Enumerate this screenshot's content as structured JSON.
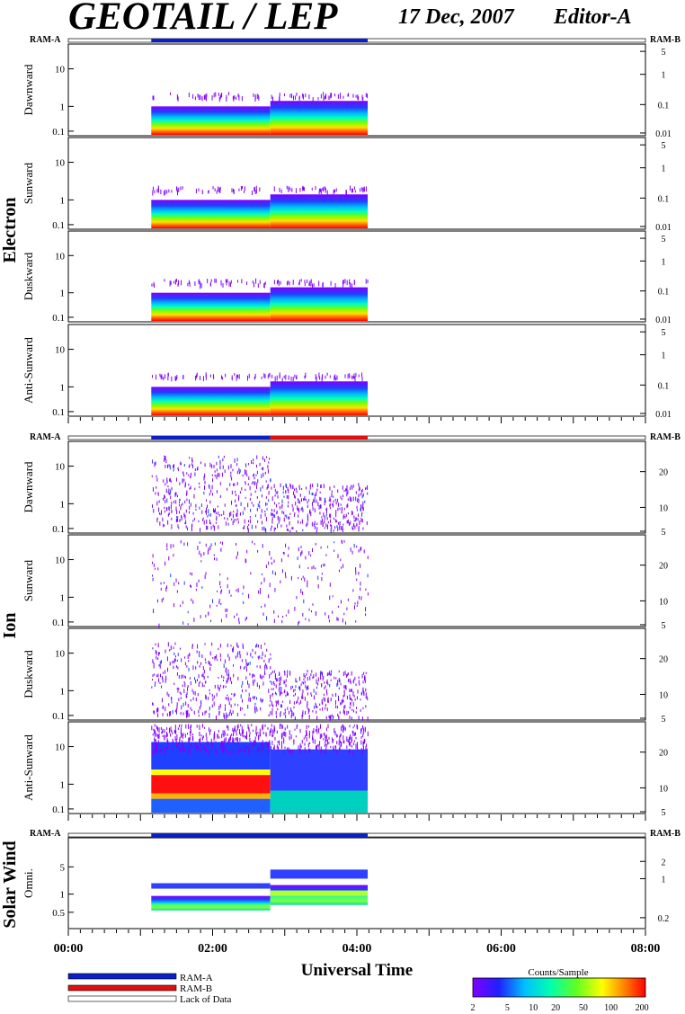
{
  "header": {
    "title": "GEOTAIL / LEP",
    "date": "17 Dec, 2007",
    "editor": "Editor-A"
  },
  "groups": [
    {
      "label": "Electron",
      "ram_left": "RAM-A",
      "ram_right": "RAM-B"
    },
    {
      "label": "Ion",
      "ram_left": "RAM-A",
      "ram_right": "RAM-B"
    },
    {
      "label": "Solar Wind",
      "ram_left": "RAM-A",
      "ram_right": "RAM-B"
    }
  ],
  "chart_data": {
    "type": "heatmap",
    "xlabel": "Universal Time",
    "x_range_hours": [
      0,
      8
    ],
    "x_tick_labels": [
      "00:00",
      "02:00",
      "04:00",
      "06:00",
      "08:00"
    ],
    "data_coverage_hours": [
      1.15,
      4.15
    ],
    "panels": [
      {
        "group": "Electron",
        "label": "Dawnward",
        "left_ticks": [
          "10",
          "1",
          "0.1"
        ],
        "right_ticks": [
          "5",
          "1",
          "0.1",
          "0.01"
        ],
        "ram_bar": [
          {
            "from": 1.15,
            "to": 4.15,
            "mode": "RAM-A"
          }
        ]
      },
      {
        "group": "Electron",
        "label": "Sunward",
        "left_ticks": [
          "10",
          "1",
          "0.1"
        ],
        "right_ticks": [
          "5",
          "1",
          "0.1",
          "0.01"
        ]
      },
      {
        "group": "Electron",
        "label": "Duskward",
        "left_ticks": [
          "10",
          "1",
          "0.1"
        ],
        "right_ticks": [
          "5",
          "1",
          "0.1",
          "0.01"
        ]
      },
      {
        "group": "Electron",
        "label": "Anti-Sunward",
        "left_ticks": [
          "10",
          "1",
          "0.1"
        ],
        "right_ticks": [
          "5",
          "1",
          "0.1",
          "0.01"
        ]
      },
      {
        "group": "Ion",
        "label": "Dawnward",
        "left_ticks": [
          "10",
          "1",
          "0.1"
        ],
        "right_ticks": [
          "20",
          "10",
          "5"
        ],
        "ram_bar": [
          {
            "from": 1.15,
            "to": 2.8,
            "mode": "RAM-A"
          },
          {
            "from": 2.8,
            "to": 4.15,
            "mode": "RAM-B"
          }
        ]
      },
      {
        "group": "Ion",
        "label": "Sunward",
        "left_ticks": [
          "10",
          "1",
          "0.1"
        ],
        "right_ticks": [
          "20",
          "10",
          "5"
        ]
      },
      {
        "group": "Ion",
        "label": "Duskward",
        "left_ticks": [
          "10",
          "1",
          "0.1"
        ],
        "right_ticks": [
          "20",
          "10",
          "5"
        ]
      },
      {
        "group": "Ion",
        "label": "Anti-Sunward",
        "left_ticks": [
          "10",
          "1",
          "0.1"
        ],
        "right_ticks": [
          "20",
          "10",
          "5"
        ]
      },
      {
        "group": "Solar Wind",
        "label": "Omni.",
        "left_ticks": [
          "5",
          "1",
          "0.5"
        ],
        "right_ticks": [
          "2",
          "1",
          "0.2"
        ],
        "ram_bar": [
          {
            "from": 1.15,
            "to": 4.15,
            "mode": "RAM-A"
          }
        ]
      }
    ],
    "legend": {
      "items": [
        {
          "name": "RAM-A",
          "color": "#0a1fc8"
        },
        {
          "name": "RAM-B",
          "color": "#e01010"
        },
        {
          "name": "Lack of Data",
          "color": "#ffffff"
        }
      ],
      "colorbar_title": "Counts/Sample",
      "colorbar_ticks": [
        "2",
        "5",
        "10",
        "20",
        "50",
        "100",
        "200"
      ]
    }
  }
}
